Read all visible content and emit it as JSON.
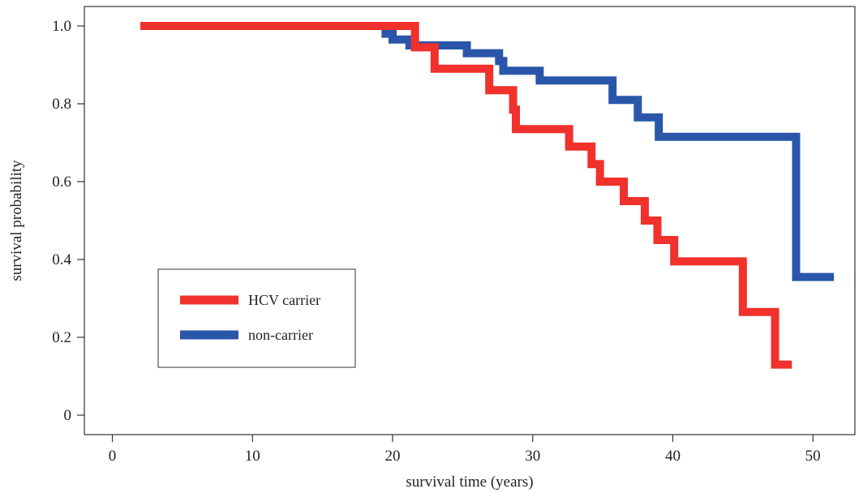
{
  "chart_data": {
    "type": "line",
    "step": true,
    "xlabel": "survival time (years)",
    "ylabel": "survival probability",
    "xlim": [
      -2,
      53
    ],
    "ylim": [
      -0.05,
      1.05
    ],
    "x_ticks": [
      0,
      10,
      20,
      30,
      40,
      50
    ],
    "y_ticks": [
      0,
      0.2,
      0.4,
      0.6,
      0.8,
      1.0
    ],
    "y_tick_labels": [
      "0",
      "0.2",
      "0.4",
      "0.6",
      "0.8",
      "1.0"
    ],
    "x_tick_labels": [
      "0",
      "10",
      "20",
      "30",
      "40",
      "50"
    ],
    "grid": false,
    "legend_placement": "bottom-left",
    "series": [
      {
        "name": "HCV carrier",
        "color": "#f0312c",
        "x": [
          2.0,
          21.6,
          23.0,
          26.9,
          28.6,
          28.8,
          32.6,
          34.2,
          34.8,
          36.5,
          38.0,
          38.9,
          40.1,
          45.0,
          47.3,
          48.5
        ],
        "y": [
          1.0,
          0.945,
          0.89,
          0.835,
          0.785,
          0.735,
          0.69,
          0.645,
          0.6,
          0.55,
          0.5,
          0.45,
          0.395,
          0.265,
          0.13,
          0.13
        ]
      },
      {
        "name": "non-carrier",
        "color": "#2a56aa",
        "x": [
          2.0,
          19.5,
          20.0,
          21.2,
          23.0,
          25.3,
          27.6,
          27.9,
          30.5,
          35.7,
          37.5,
          39.0,
          48.8,
          51.5
        ],
        "y": [
          1.0,
          0.98,
          0.965,
          0.95,
          0.95,
          0.93,
          0.91,
          0.885,
          0.86,
          0.81,
          0.765,
          0.715,
          0.355,
          0.355
        ]
      }
    ]
  }
}
